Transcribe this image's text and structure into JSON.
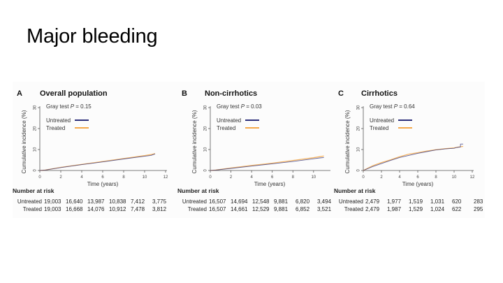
{
  "slide": {
    "title": "Major bleeding"
  },
  "colors": {
    "untreated": "#2b2e7a",
    "treated": "#f5a94a",
    "axis": "#555555",
    "text": "#222222"
  },
  "risk_labels": {
    "header": "Number at risk",
    "untreated": "Untreated",
    "treated": "Treated"
  },
  "chart_data": [
    {
      "type": "line",
      "panel_letter": "A",
      "title": "Overall population",
      "annotation": "Gray test P = 0.15",
      "annotation_prefix": "Gray test ",
      "annotation_p": "P",
      "annotation_value": " = 0.15",
      "xlabel": "Time (years)",
      "ylabel": "Cumulative incidence (%)",
      "xlim": [
        0,
        12
      ],
      "ylim": [
        0,
        30
      ],
      "xticks": [
        0,
        2,
        4,
        6,
        8,
        10,
        12
      ],
      "yticks": [
        0,
        10,
        20,
        30
      ],
      "legend": [
        "Untreated",
        "Treated"
      ],
      "legend_position": "top-left",
      "series": [
        {
          "name": "Untreated",
          "x": [
            0,
            0.5,
            2,
            4,
            6,
            8,
            10,
            10.6,
            11
          ],
          "y": [
            0,
            0.2,
            1.4,
            2.8,
            4.1,
            5.5,
            6.8,
            7.2,
            7.9
          ]
        },
        {
          "name": "Treated",
          "x": [
            0,
            0.5,
            2,
            4,
            6,
            8,
            10,
            10.6,
            11
          ],
          "y": [
            0,
            0.2,
            1.5,
            2.9,
            4.3,
            5.7,
            7.1,
            7.6,
            8.1
          ]
        }
      ],
      "number_at_risk": {
        "Untreated": [
          "19,003",
          "16,640",
          "13,987",
          "10,838",
          "7,412",
          "3,775"
        ],
        "Treated": [
          "19,003",
          "16,668",
          "14,076",
          "10,912",
          "7,478",
          "3,812"
        ]
      }
    },
    {
      "type": "line",
      "panel_letter": "B",
      "title": "Non-cirrhotics",
      "annotation": "Gray test P = 0.03",
      "annotation_prefix": "Gray test ",
      "annotation_p": "P",
      "annotation_value": " = 0.03",
      "xlabel": "Time (years)",
      "ylabel": "Cumulative incidence (%)",
      "xlim": [
        0,
        11.5
      ],
      "ylim": [
        0,
        30
      ],
      "xticks": [
        0,
        2,
        4,
        6,
        8,
        10
      ],
      "yticks": [
        0,
        10,
        20,
        30
      ],
      "legend": [
        "Untreated",
        "Treated"
      ],
      "legend_position": "top-left",
      "series": [
        {
          "name": "Untreated",
          "x": [
            0,
            0.5,
            2,
            4,
            6,
            8,
            10,
            10.6,
            11
          ],
          "y": [
            0,
            0.2,
            1.0,
            2.1,
            3.2,
            4.3,
            5.6,
            6.0,
            6.2
          ]
        },
        {
          "name": "Treated",
          "x": [
            0,
            0.5,
            2,
            4,
            6,
            8,
            10,
            10.6,
            11
          ],
          "y": [
            0,
            0.2,
            1.2,
            2.4,
            3.5,
            4.8,
            6.1,
            6.6,
            6.9
          ]
        }
      ],
      "number_at_risk": {
        "Untreated": [
          "16,507",
          "14,694",
          "12,548",
          "9,881",
          "6,820",
          "3,494"
        ],
        "Treated": [
          "16,507",
          "14,661",
          "12,529",
          "9,881",
          "6,852",
          "3,521"
        ]
      }
    },
    {
      "type": "line",
      "panel_letter": "C",
      "title": "Cirrhotics",
      "annotation": "Gray test P = 0.64",
      "annotation_prefix": "Gray test ",
      "annotation_p": "P",
      "annotation_value": " = 0.64",
      "xlabel": "Time (years)",
      "ylabel": "Cumulative incidence (%)",
      "xlim": [
        0,
        12
      ],
      "ylim": [
        0,
        30
      ],
      "xticks": [
        0,
        2,
        4,
        6,
        8,
        10,
        12
      ],
      "yticks": [
        0,
        10,
        20,
        30
      ],
      "legend": [
        "Untreated",
        "Treated"
      ],
      "legend_position": "top-left",
      "series": [
        {
          "name": "Untreated",
          "x": [
            0,
            1,
            2,
            3,
            4,
            5,
            6,
            7,
            8,
            9,
            10,
            10.3,
            10.7,
            10.7,
            11
          ],
          "y": [
            0,
            1.8,
            3.3,
            4.8,
            6.2,
            7.2,
            8.2,
            9.0,
            9.8,
            10.3,
            10.6,
            11.0,
            11.2,
            12.6,
            12.6
          ]
        },
        {
          "name": "Treated",
          "x": [
            0,
            1,
            2,
            3,
            4,
            5,
            6,
            7,
            8,
            9,
            10,
            10.5,
            11
          ],
          "y": [
            0,
            2.2,
            3.8,
            5.1,
            6.6,
            7.8,
            8.5,
            9.3,
            9.9,
            10.4,
            10.8,
            11.2,
            11.5
          ]
        }
      ],
      "number_at_risk": {
        "Untreated": [
          "2,479",
          "1,977",
          "1,519",
          "1,031",
          "620",
          "283"
        ],
        "Treated": [
          "2,479",
          "1,987",
          "1,529",
          "1,024",
          "622",
          "295"
        ]
      }
    }
  ]
}
